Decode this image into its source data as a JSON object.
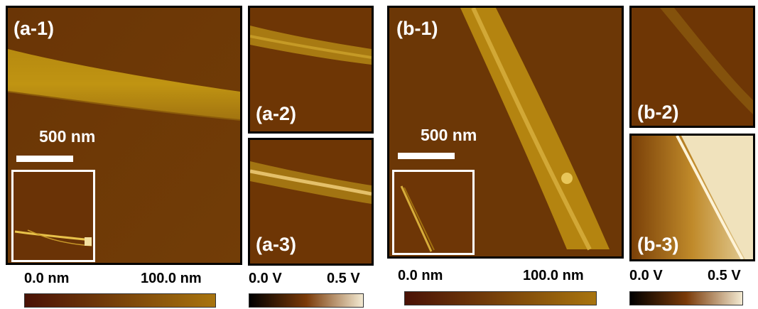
{
  "panels": {
    "a1": {
      "label": "(a-1)",
      "scale_label": "500 nm"
    },
    "a2": {
      "label": "(a-2)"
    },
    "a3": {
      "label": "(a-3)"
    },
    "b1": {
      "label": "(b-1)",
      "scale_label": "500 nm"
    },
    "b2": {
      "label": "(b-2)"
    },
    "b3": {
      "label": "(b-3)"
    }
  },
  "colorbars": {
    "height_a": {
      "min": "0.0 nm",
      "max": "100.0 nm",
      "colors": [
        "#4a1206",
        "#a8740e"
      ]
    },
    "potential_a": {
      "min": "0.0 V",
      "max": "0.5 V",
      "colors": [
        "#000000",
        "#7a3a08",
        "#f3ead2"
      ]
    },
    "height_b": {
      "min": "0.0 nm",
      "max": "100.0 nm",
      "colors": [
        "#4a1206",
        "#a8740e"
      ]
    },
    "potential_b": {
      "min": "0.0 V",
      "max": "0.5 V",
      "colors": [
        "#000000",
        "#7a3a08",
        "#f3ead2"
      ]
    }
  }
}
